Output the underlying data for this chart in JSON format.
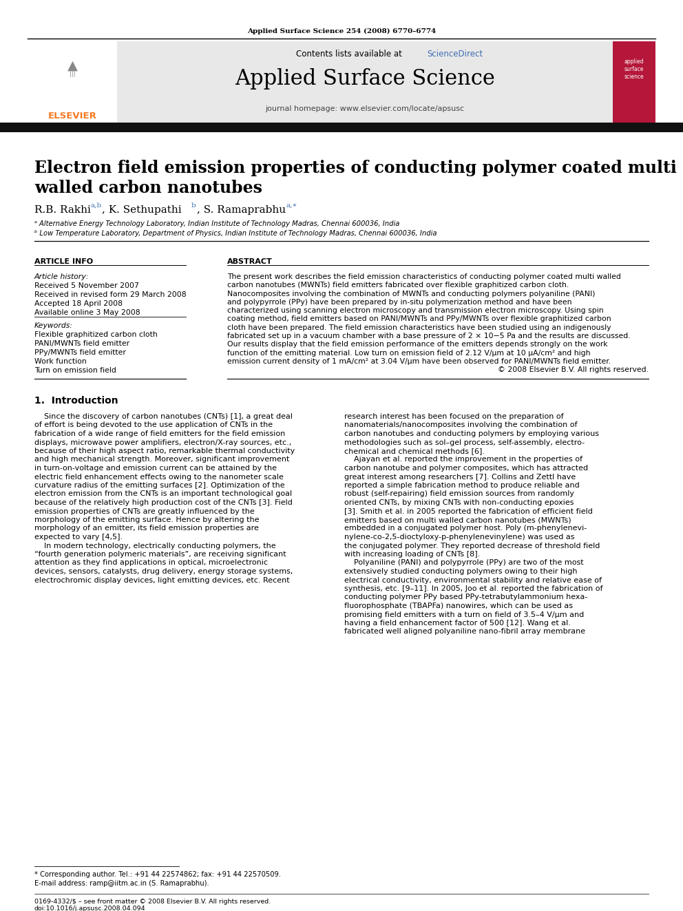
{
  "journal_ref": "Applied Surface Science 254 (2008) 6770–6774",
  "journal_name": "Applied Surface Science",
  "contents_line": "Contents lists available at ",
  "sciencedirect_text": "ScienceDirect",
  "journal_homepage": "journal homepage: www.elsevier.com/locate/apsusc",
  "paper_title_line1": "Electron field emission properties of conducting polymer coated multi",
  "paper_title_line2": "walled carbon nanotubes",
  "affil_a": "ᵃ Alternative Energy Technology Laboratory, Indian Institute of Technology Madras, Chennai 600036, India",
  "affil_b": "ᵇ Low Temperature Laboratory, Department of Physics, Indian Institute of Technology Madras, Chennai 600036, India",
  "article_info_header": "ARTICLE INFO",
  "abstract_header": "ABSTRACT",
  "article_history_header": "Article history:",
  "received_date": "Received 5 November 2007",
  "revised_date": "Received in revised form 29 March 2008",
  "accepted_date": "Accepted 18 April 2008",
  "available_date": "Available online 3 May 2008",
  "keywords_header": "Keywords:",
  "keyword1": "Flexible graphitized carbon cloth",
  "keyword2": "PANI/MWNTs field emitter",
  "keyword3": "PPy/MWNTs field emitter",
  "keyword4": "Work function",
  "keyword5": "Turn on emission field",
  "abstract_lines": [
    "The present work describes the field emission characteristics of conducting polymer coated multi walled",
    "carbon nanotubes (MWNTs) field emitters fabricated over flexible graphitized carbon cloth.",
    "Nanocomposites involving the combination of MWNTs and conducting polymers polyaniline (PANI)",
    "and polypyrrole (PPy) have been prepared by in-situ polymerization method and have been",
    "characterized using scanning electron microscopy and transmission electron microscopy. Using spin",
    "coating method, field emitters based on PANI/MWNTs and PPy/MWNTs over flexible graphitized carbon",
    "cloth have been prepared. The field emission characteristics have been studied using an indigenously",
    "fabricated set up in a vacuum chamber with a base pressure of 2 × 10−5 Pa and the results are discussed.",
    "Our results display that the field emission performance of the emitters depends strongly on the work",
    "function of the emitting material. Low turn on emission field of 2.12 V/μm at 10 μA/cm² and high",
    "emission current density of 1 mA/cm² at 3.04 V/μm have been observed for PANI/MWNTs field emitter.",
    "© 2008 Elsevier B.V. All rights reserved."
  ],
  "intro_header": "1.  Introduction",
  "intro_col1_lines": [
    "    Since the discovery of carbon nanotubes (CNTs) [1], a great deal",
    "of effort is being devoted to the use application of CNTs in the",
    "fabrication of a wide range of field emitters for the field emission",
    "displays, microwave power amplifiers, electron/X-ray sources, etc.,",
    "because of their high aspect ratio, remarkable thermal conductivity",
    "and high mechanical strength. Moreover, significant improvement",
    "in turn-on-voltage and emission current can be attained by the",
    "electric field enhancement effects owing to the nanometer scale",
    "curvature radius of the emitting surfaces [2]. Optimization of the",
    "electron emission from the CNTs is an important technological goal",
    "because of the relatively high production cost of the CNTs [3]. Field",
    "emission properties of CNTs are greatly influenced by the",
    "morphology of the emitting surface. Hence by altering the",
    "morphology of an emitter, its field emission properties are",
    "expected to vary [4,5].",
    "    In modern technology, electrically conducting polymers, the",
    "“fourth generation polymeric materials”, are receiving significant",
    "attention as they find applications in optical, microelectronic",
    "devices, sensors, catalysts, drug delivery, energy storage systems,",
    "electrochromic display devices, light emitting devices, etc. Recent"
  ],
  "intro_col2_lines": [
    "research interest has been focused on the preparation of",
    "nanomaterials/nanocomposites involving the combination of",
    "carbon nanotubes and conducting polymers by employing various",
    "methodologies such as sol–gel process, self-assembly, electro-",
    "chemical and chemical methods [6].",
    "    Ajayan et al. reported the improvement in the properties of",
    "carbon nanotube and polymer composites, which has attracted",
    "great interest among researchers [7]. Collins and Zettl have",
    "reported a simple fabrication method to produce reliable and",
    "robust (self-repairing) field emission sources from randomly",
    "oriented CNTs, by mixing CNTs with non-conducting epoxies",
    "[3]. Smith et al. in 2005 reported the fabrication of efficient field",
    "emitters based on multi walled carbon nanotubes (MWNTs)",
    "embedded in a conjugated polymer host. Poly (m-phenylenevi-",
    "nylene-co-2,5-dioctyloxy-p-phenylenevinylene) was used as",
    "the conjugated polymer. They reported decrease of threshold field",
    "with increasing loading of CNTs [8].",
    "    Polyaniline (PANI) and polypyrrole (PPy) are two of the most",
    "extensively studied conducting polymers owing to their high",
    "electrical conductivity, environmental stability and relative ease of",
    "synthesis, etc. [9–11]. In 2005, Joo et al. reported the fabrication of",
    "conducting polymer PPy based PPy-tetrabutylammonium hexa-",
    "fluorophosphate (TBAPFa) nanowires, which can be used as",
    "promising field emitters with a turn on field of 3.5–4 V/μm and",
    "having a field enhancement factor of 500 [12]. Wang et al.",
    "fabricated well aligned polyaniline nano-fibril array membrane"
  ],
  "footnote_star": "* Corresponding author. Tel.: +91 44 22574862; fax: +91 44 22570509.",
  "footnote_email": "E-mail address: ramp@iitm.ac.in (S. Ramaprabhu).",
  "footer1": "0169-4332/$ – see front matter © 2008 Elsevier B.V. All rights reserved.",
  "footer2": "doi:10.1016/j.apsusc.2008.04.094",
  "bg_color": "#ffffff",
  "grey_header_color": "#e8e8e8",
  "black_bar_color": "#111111",
  "elsevier_orange": "#f47920",
  "sciencedirect_blue": "#3e6eb4",
  "right_box_crimson": "#b5173a",
  "text_black": "#000000",
  "rule_color": "#000000"
}
